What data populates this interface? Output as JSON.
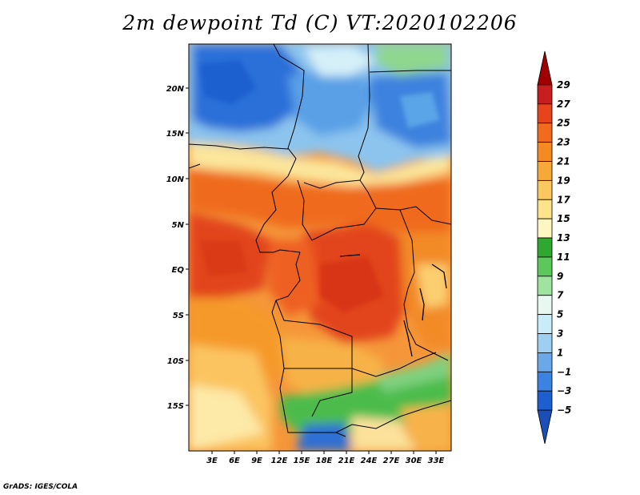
{
  "title": "2m dewpoint Td (C) VT:2020102206",
  "credit": "GrADS: IGES/COLA",
  "map": {
    "lat_labels": [
      "20N",
      "15N",
      "10N",
      "5N",
      "EQ",
      "5S",
      "10S",
      "15S"
    ],
    "lon_labels": [
      "3E",
      "6E",
      "9E",
      "12E",
      "15E",
      "18E",
      "21E",
      "24E",
      "27E",
      "30E",
      "33E"
    ],
    "colors": {
      "dry_deep": "#1e6fd9",
      "dry_mid": "#4f9be6",
      "dry_light": "#a8d8f2",
      "moist_green": "#4cc04c",
      "mid_yellow": "#fbe89a",
      "warm_orange": "#f59a2a",
      "hot_orange": "#ef6a1c",
      "hot_red": "#e0401a"
    }
  },
  "colorbar": {
    "labels": [
      "29",
      "27",
      "25",
      "23",
      "21",
      "19",
      "17",
      "15",
      "13",
      "11",
      "9",
      "7",
      "5",
      "3",
      "1",
      "−1",
      "−3",
      "−5"
    ],
    "colors": [
      "#a00000",
      "#c81e1e",
      "#e8441c",
      "#f26a1e",
      "#f58a22",
      "#f8a838",
      "#fbc860",
      "#fde38a",
      "#fdf6c0",
      "#2ea82e",
      "#5cc85c",
      "#9ee49e",
      "#e8f8f0",
      "#c8ecf8",
      "#9ccff0",
      "#6aa8ea",
      "#3c82e0",
      "#1e5fcf",
      "#1a4fb8"
    ]
  }
}
